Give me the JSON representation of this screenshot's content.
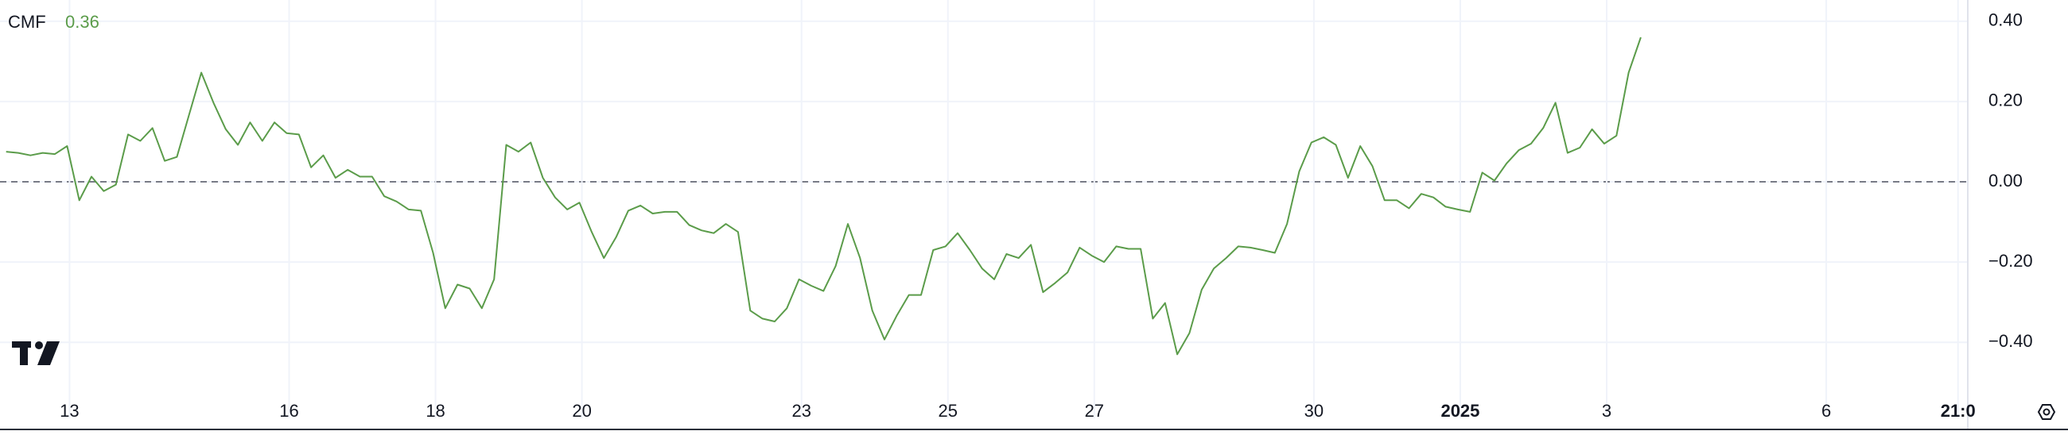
{
  "chart_data": {
    "type": "line",
    "title": "CMF",
    "legend_value": 0.36,
    "series": [
      {
        "name": "CMF",
        "color": "#5b9c4a",
        "values": [
          0.075,
          0.072,
          0.066,
          0.072,
          0.069,
          0.089,
          -0.046,
          0.013,
          -0.023,
          -0.007,
          0.118,
          0.102,
          0.134,
          0.052,
          0.062,
          0.167,
          0.272,
          0.197,
          0.131,
          0.092,
          0.148,
          0.102,
          0.148,
          0.121,
          0.118,
          0.036,
          0.066,
          0.01,
          0.03,
          0.013,
          0.013,
          -0.036,
          -0.049,
          -0.069,
          -0.072,
          -0.177,
          -0.315,
          -0.256,
          -0.266,
          -0.315,
          -0.243,
          0.092,
          0.075,
          0.098,
          0.01,
          -0.039,
          -0.069,
          -0.052,
          -0.125,
          -0.19,
          -0.138,
          -0.072,
          -0.059,
          -0.079,
          -0.075,
          -0.075,
          -0.108,
          -0.121,
          -0.128,
          -0.105,
          -0.125,
          -0.321,
          -0.341,
          -0.348,
          -0.315,
          -0.243,
          -0.259,
          -0.272,
          -0.21,
          -0.105,
          -0.19,
          -0.321,
          -0.393,
          -0.334,
          -0.282,
          -0.282,
          -0.17,
          -0.161,
          -0.128,
          -0.17,
          -0.216,
          -0.243,
          -0.18,
          -0.19,
          -0.157,
          -0.275,
          -0.252,
          -0.226,
          -0.164,
          -0.184,
          -0.2,
          -0.161,
          -0.167,
          -0.167,
          -0.341,
          -0.302,
          -0.43,
          -0.377,
          -0.269,
          -0.216,
          -0.19,
          -0.161,
          -0.164,
          -0.17,
          -0.177,
          -0.105,
          0.026,
          0.098,
          0.111,
          0.092,
          0.01,
          0.089,
          0.039,
          -0.046,
          -0.046,
          -0.066,
          -0.03,
          -0.039,
          -0.062,
          -0.069,
          -0.075,
          0.023,
          0.003,
          0.046,
          0.079,
          0.095,
          0.134,
          0.197,
          0.072,
          0.085,
          0.131,
          0.095,
          0.115,
          0.272,
          0.36
        ]
      }
    ],
    "xlim": [
      0,
      161.3
    ],
    "xticks": [
      {
        "value": 5.7,
        "label": "13"
      },
      {
        "value": 23.7,
        "label": "16"
      },
      {
        "value": 35.7,
        "label": "18"
      },
      {
        "value": 47.7,
        "label": "20"
      },
      {
        "value": 65.7,
        "label": "23"
      },
      {
        "value": 77.7,
        "label": "25"
      },
      {
        "value": 89.7,
        "label": "27"
      },
      {
        "value": 107.7,
        "label": "30"
      },
      {
        "value": 119.7,
        "label": "2025"
      },
      {
        "value": 131.7,
        "label": "3"
      },
      {
        "value": 149.7,
        "label": "6"
      },
      {
        "value": 160.5,
        "label": "21:0"
      }
    ],
    "ylim": [
      -0.53,
      0.45
    ],
    "yticks": [
      {
        "value": 0.4,
        "label": "0.40"
      },
      {
        "value": 0.2,
        "label": "0.20"
      },
      {
        "value": 0,
        "label": "0.00"
      },
      {
        "value": -0.2,
        "label": "−0.20"
      },
      {
        "value": -0.4,
        "label": "−0.40"
      }
    ],
    "grid": true
  }
}
